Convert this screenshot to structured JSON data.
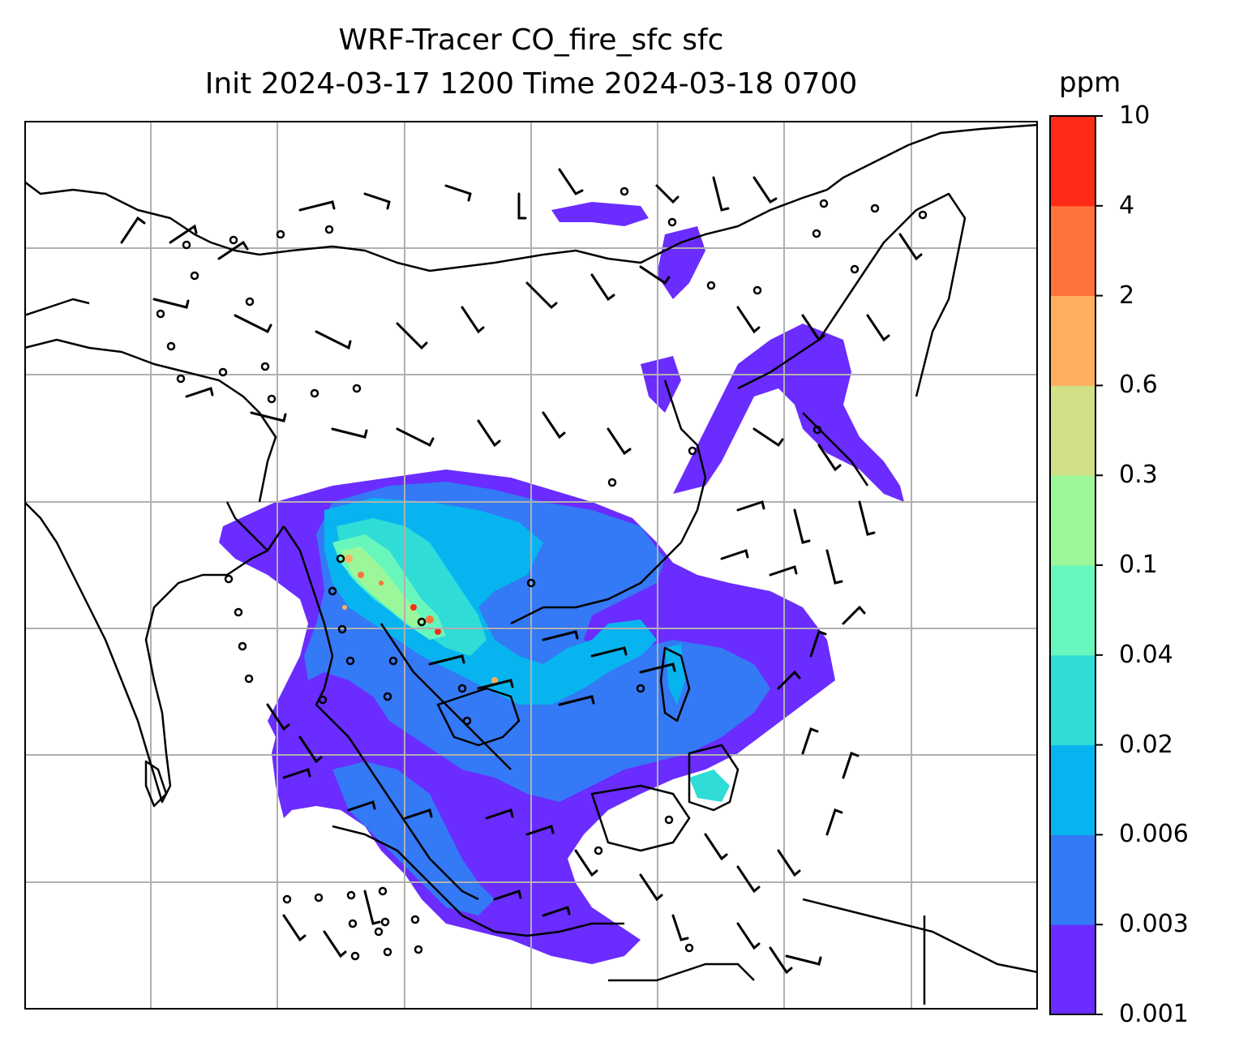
{
  "title": {
    "line1": "WRF-Tracer CO_fire_sfc sfc",
    "line2": "Init 2024-03-17 1200 Time 2024-03-18 0700"
  },
  "colorbar": {
    "unit": "ppm",
    "levels": [
      "0.001",
      "0.003",
      "0.006",
      "0.02",
      "0.04",
      "0.1",
      "0.3",
      "0.6",
      "2",
      "4",
      "10"
    ],
    "colors": [
      "#6a2cff",
      "#3479f5",
      "#08b4ef",
      "#2fdcd6",
      "#67f7bd",
      "#9cf79b",
      "#d0e085",
      "#ffaf5f",
      "#ff723c",
      "#ff2a17"
    ]
  },
  "map": {
    "land_outline_color": "#000000",
    "gridline_color": "#b0b0b0",
    "barb_color": "#000000",
    "overlay": "wind barbs"
  }
}
